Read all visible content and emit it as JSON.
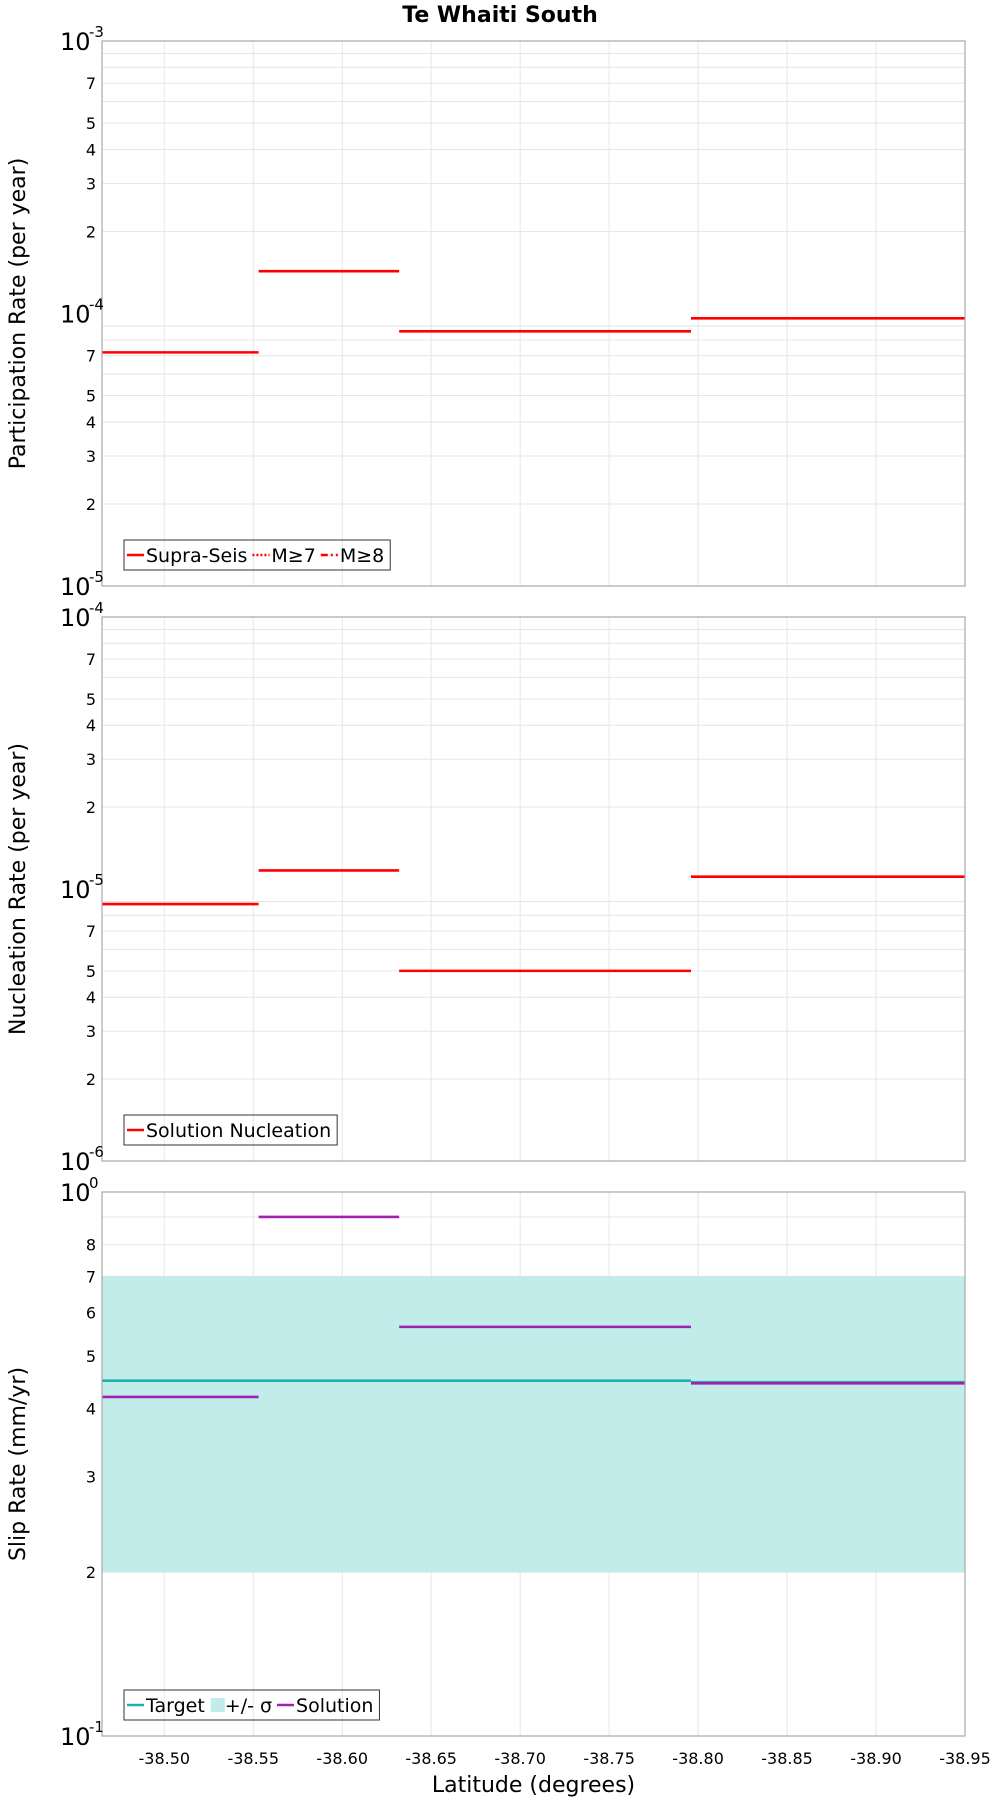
{
  "chart_data": [
    {
      "type": "line",
      "title": "Te Whaiti South",
      "ylabel": "Participation Rate (per year)",
      "xlabel": "",
      "yscale": "log",
      "ylim": [
        1e-05,
        0.001
      ],
      "xlim": [
        -38.465,
        -38.95
      ],
      "y_decades": [
        {
          "base": "10",
          "exp": "-5",
          "value": 1e-05
        },
        {
          "base": "10",
          "exp": "-4",
          "value": 0.0001
        },
        {
          "base": "10",
          "exp": "-3",
          "value": 0.001
        }
      ],
      "y_minor_labels": [
        {
          "label": "2",
          "value": 2e-05
        },
        {
          "label": "3",
          "value": 3e-05
        },
        {
          "label": "4",
          "value": 4e-05
        },
        {
          "label": "5",
          "value": 5e-05
        },
        {
          "label": "7",
          "value": 7e-05
        },
        {
          "label": "2",
          "value": 0.0002
        },
        {
          "label": "3",
          "value": 0.0003
        },
        {
          "label": "4",
          "value": 0.0004
        },
        {
          "label": "5",
          "value": 0.0005
        },
        {
          "label": "7",
          "value": 0.0007
        }
      ],
      "legend": [
        {
          "label": "Supra-Seis",
          "color": "#ff0000",
          "dash": "solid"
        },
        {
          "label": "M≥7",
          "color": "#ff0000",
          "dash": "dot"
        },
        {
          "label": "M≥8",
          "color": "#ff0000",
          "dash": "dashdot"
        }
      ],
      "series": [
        {
          "name": "Supra-Seis",
          "color": "#ff0000",
          "segments": [
            {
              "x0": -38.465,
              "x1": -38.553,
              "y": 7.2e-05
            },
            {
              "x0": -38.553,
              "x1": -38.632,
              "y": 0.000143
            },
            {
              "x0": -38.632,
              "x1": -38.796,
              "y": 8.6e-05
            },
            {
              "x0": -38.796,
              "x1": -38.95,
              "y": 9.6e-05
            }
          ]
        }
      ]
    },
    {
      "type": "line",
      "title": "",
      "ylabel": "Nucleation Rate (per year)",
      "xlabel": "",
      "yscale": "log",
      "ylim": [
        1e-06,
        0.0001
      ],
      "xlim": [
        -38.465,
        -38.95
      ],
      "y_decades": [
        {
          "base": "10",
          "exp": "-6",
          "value": 1e-06
        },
        {
          "base": "10",
          "exp": "-5",
          "value": 1e-05
        },
        {
          "base": "10",
          "exp": "-4",
          "value": 0.0001
        }
      ],
      "y_minor_labels": [
        {
          "label": "2",
          "value": 2e-06
        },
        {
          "label": "3",
          "value": 3e-06
        },
        {
          "label": "4",
          "value": 4e-06
        },
        {
          "label": "5",
          "value": 5e-06
        },
        {
          "label": "7",
          "value": 7e-06
        },
        {
          "label": "2",
          "value": 2e-05
        },
        {
          "label": "3",
          "value": 3e-05
        },
        {
          "label": "4",
          "value": 4e-05
        },
        {
          "label": "5",
          "value": 5e-05
        },
        {
          "label": "7",
          "value": 7e-05
        }
      ],
      "legend": [
        {
          "label": "Solution Nucleation",
          "color": "#ff0000",
          "dash": "solid"
        }
      ],
      "series": [
        {
          "name": "Solution Nucleation",
          "color": "#ff0000",
          "segments": [
            {
              "x0": -38.465,
              "x1": -38.553,
              "y": 8.8e-06
            },
            {
              "x0": -38.553,
              "x1": -38.632,
              "y": 1.17e-05
            },
            {
              "x0": -38.632,
              "x1": -38.796,
              "y": 5e-06
            },
            {
              "x0": -38.796,
              "x1": -38.95,
              "y": 1.11e-05
            }
          ]
        }
      ]
    },
    {
      "type": "line",
      "title": "",
      "ylabel": "Slip Rate (mm/yr)",
      "xlabel": "Latitude (degrees)",
      "yscale": "log",
      "ylim": [
        0.1,
        1.0
      ],
      "xlim": [
        -38.465,
        -38.95
      ],
      "y_decades": [
        {
          "base": "10",
          "exp": "-1",
          "value": 0.1
        },
        {
          "base": "10",
          "exp": "0",
          "value": 1.0
        }
      ],
      "y_minor_labels": [
        {
          "label": "2",
          "value": 0.2
        },
        {
          "label": "3",
          "value": 0.3
        },
        {
          "label": "4",
          "value": 0.4
        },
        {
          "label": "5",
          "value": 0.5
        },
        {
          "label": "6",
          "value": 0.6
        },
        {
          "label": "7",
          "value": 0.7
        },
        {
          "label": "8",
          "value": 0.8
        }
      ],
      "x_ticks": [
        {
          "label": "-38.50",
          "value": -38.5
        },
        {
          "label": "-38.55",
          "value": -38.55
        },
        {
          "label": "-38.60",
          "value": -38.6
        },
        {
          "label": "-38.65",
          "value": -38.65
        },
        {
          "label": "-38.70",
          "value": -38.7
        },
        {
          "label": "-38.75",
          "value": -38.75
        },
        {
          "label": "-38.80",
          "value": -38.8
        },
        {
          "label": "-38.85",
          "value": -38.85
        },
        {
          "label": "-38.90",
          "value": -38.9
        },
        {
          "label": "-38.95",
          "value": -38.95
        }
      ],
      "band": {
        "name": "+/- σ",
        "color": "#c2ecea",
        "y_low": 0.2,
        "y_high": 0.7
      },
      "legend": [
        {
          "label": "Target",
          "color": "#1fb0ab",
          "dash": "solid"
        },
        {
          "label": "+/- σ",
          "color": "#c2ecea",
          "dash": "box"
        },
        {
          "label": "Solution",
          "color": "#a020b0",
          "dash": "solid"
        }
      ],
      "series": [
        {
          "name": "Target",
          "color": "#1fb0ab",
          "segments": [
            {
              "x0": -38.465,
              "x1": -38.796,
              "y": 0.45
            },
            {
              "x0": -38.796,
              "x1": -38.95,
              "y": 0.447
            }
          ]
        },
        {
          "name": "Solution",
          "color": "#a020b0",
          "segments": [
            {
              "x0": -38.465,
              "x1": -38.553,
              "y": 0.42
            },
            {
              "x0": -38.553,
              "x1": -38.632,
              "y": 0.9
            },
            {
              "x0": -38.632,
              "x1": -38.796,
              "y": 0.565
            },
            {
              "x0": -38.796,
              "x1": -38.95,
              "y": 0.445
            }
          ]
        }
      ]
    }
  ]
}
